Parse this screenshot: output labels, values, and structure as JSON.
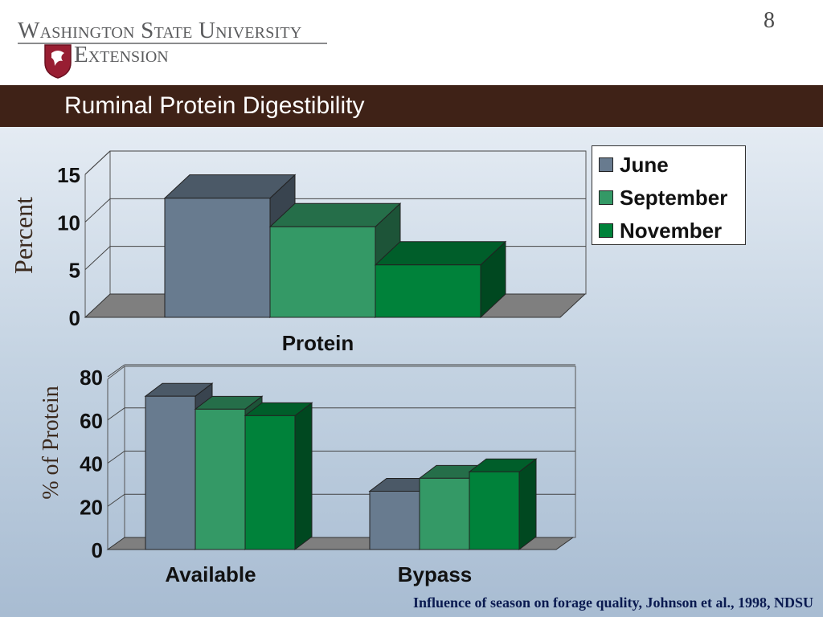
{
  "header": {
    "university": "Washington State University",
    "extension": "Extension",
    "page_number": "8"
  },
  "title": "Ruminal Protein Digestibility",
  "legend": [
    {
      "label": "June",
      "color": "#687b8f"
    },
    {
      "label": "September",
      "color": "#349966"
    },
    {
      "label": "November",
      "color": "#00823a"
    }
  ],
  "caption": "Influence of season on forage quality, Johnson et al., 1998, NDSU",
  "chart_data": [
    {
      "type": "bar",
      "categories": [
        "Protein"
      ],
      "series": [
        {
          "name": "June",
          "values": [
            12.5
          ]
        },
        {
          "name": "September",
          "values": [
            9.5
          ]
        },
        {
          "name": "November",
          "values": [
            5.5
          ]
        }
      ],
      "ylabel": "Percent",
      "yticks": [
        "0",
        "5",
        "10",
        "15"
      ],
      "ylim": [
        0,
        15
      ],
      "grid": true,
      "legend": "top-right",
      "colors": [
        "#687b8f",
        "#349966",
        "#00823a"
      ]
    },
    {
      "type": "bar",
      "categories": [
        "Available",
        "Bypass"
      ],
      "series": [
        {
          "name": "June",
          "values": [
            71,
            27
          ]
        },
        {
          "name": "September",
          "values": [
            65,
            33
          ]
        },
        {
          "name": "November",
          "values": [
            62,
            36
          ]
        }
      ],
      "ylabel": "% of Protein",
      "yticks": [
        "0",
        "20",
        "40",
        "60",
        "80"
      ],
      "ylim": [
        0,
        80
      ],
      "grid": true,
      "colors": [
        "#687b8f",
        "#349966",
        "#00823a"
      ]
    }
  ]
}
